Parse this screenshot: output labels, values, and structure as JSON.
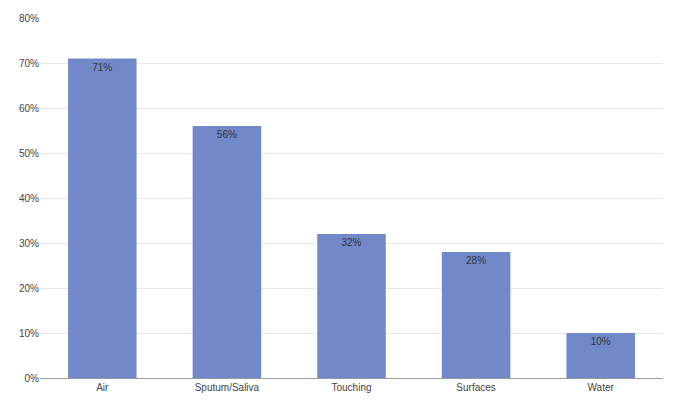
{
  "chart_data": {
    "type": "bar",
    "categories": [
      "Air",
      "Sputum/Saliva",
      "Touching",
      "Surfaces",
      "Water"
    ],
    "values": [
      71,
      56,
      32,
      28,
      10
    ],
    "value_labels": [
      "71%",
      "56%",
      "32%",
      "28%",
      "10%"
    ],
    "color": "#7289c9",
    "ylim": [
      0,
      80
    ],
    "yticks": [
      {
        "value": 0,
        "label": "0%"
      },
      {
        "value": 10,
        "label": "10%"
      },
      {
        "value": 20,
        "label": "20%"
      },
      {
        "value": 30,
        "label": "30%"
      },
      {
        "value": 40,
        "label": "40%"
      },
      {
        "value": 50,
        "label": "50%"
      },
      {
        "value": 60,
        "label": "60%"
      },
      {
        "value": 70,
        "label": "70%"
      },
      {
        "value": 80,
        "label": "80%"
      }
    ],
    "grid": true,
    "data_labels": true
  }
}
